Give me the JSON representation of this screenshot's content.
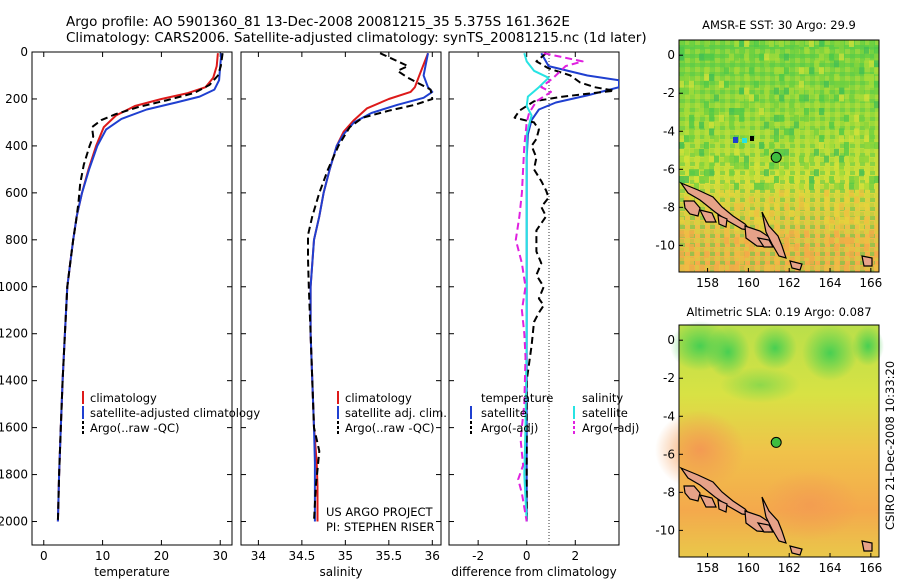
{
  "header": {
    "line1": "Argo profile: AO 5901360_81 13-Dec-2008 20081215_35 5.375S 161.362E",
    "line2": "Climatology: CARS2006. Satellite-adjusted climatology: synTS_20081215.nc (1d later)"
  },
  "side_label": "CSIRO 21-Dec-2008 10:33:20",
  "credit": {
    "line1": "US ARGO PROJECT",
    "line2": "PI: STEPHEN RISER"
  },
  "colors": {
    "red": "#dd1a1a",
    "blue": "#1f3fd0",
    "black": "#000000",
    "cyan": "#27e3e3",
    "magenta": "#e021e0"
  },
  "chart_data": [
    {
      "type": "line",
      "xlabel": "temperature",
      "ylabel": "",
      "xlim": [
        -2,
        32
      ],
      "ylim": [
        2100,
        0
      ],
      "xticks": [
        0,
        10,
        20,
        30
      ],
      "yticks": [
        0,
        200,
        400,
        600,
        800,
        1000,
        1200,
        1400,
        1600,
        1800,
        2000
      ],
      "legend": {
        "position": "lower-left",
        "entries": [
          "climatology",
          "satellite-adjusted climatology",
          "Argo(..raw -QC)"
        ]
      },
      "series": [
        {
          "name": "climatology",
          "color": "red",
          "dash": false,
          "points": [
            [
              29.6,
              5
            ],
            [
              29.4,
              60
            ],
            [
              28.8,
              110
            ],
            [
              27.5,
              150
            ],
            [
              24.5,
              175
            ],
            [
              20,
              200
            ],
            [
              15.5,
              230
            ],
            [
              12.3,
              270
            ],
            [
              10.2,
              320
            ],
            [
              8.9,
              400
            ],
            [
              7.6,
              500
            ],
            [
              6.5,
              600
            ],
            [
              5.6,
              700
            ],
            [
              5,
              800
            ],
            [
              4.5,
              900
            ],
            [
              4,
              1000
            ],
            [
              3.6,
              1200
            ],
            [
              3.2,
              1400
            ],
            [
              2.9,
              1600
            ],
            [
              2.6,
              1800
            ],
            [
              2.4,
              2000
            ]
          ]
        },
        {
          "name": "satellite-adjusted climatology",
          "color": "blue",
          "dash": false,
          "points": [
            [
              30.2,
              5
            ],
            [
              30,
              60
            ],
            [
              29.8,
              120
            ],
            [
              29,
              160
            ],
            [
              26.5,
              190
            ],
            [
              22.5,
              215
            ],
            [
              17.5,
              245
            ],
            [
              13.2,
              285
            ],
            [
              10.6,
              330
            ],
            [
              9.1,
              400
            ],
            [
              7.7,
              500
            ],
            [
              6.5,
              600
            ],
            [
              5.6,
              700
            ],
            [
              5,
              800
            ],
            [
              4.5,
              900
            ],
            [
              4,
              1000
            ],
            [
              3.6,
              1200
            ],
            [
              3.2,
              1400
            ],
            [
              2.9,
              1600
            ],
            [
              2.6,
              1800
            ],
            [
              2.4,
              2000
            ]
          ]
        },
        {
          "name": "Argo(..raw -QC)",
          "color": "black",
          "dash": true,
          "points": [
            [
              30.4,
              5
            ],
            [
              30.1,
              60
            ],
            [
              29.6,
              100
            ],
            [
              28.2,
              140
            ],
            [
              25.5,
              175
            ],
            [
              21,
              205
            ],
            [
              16,
              235
            ],
            [
              12.2,
              265
            ],
            [
              9.8,
              290
            ],
            [
              8.2,
              320
            ],
            [
              8.4,
              360
            ],
            [
              7.8,
              400
            ],
            [
              6.8,
              480
            ],
            [
              6.2,
              560
            ],
            [
              5.9,
              640
            ],
            [
              5.5,
              720
            ],
            [
              5,
              800
            ],
            [
              4.5,
              900
            ],
            [
              4,
              1000
            ],
            [
              3.6,
              1200
            ],
            [
              3.2,
              1400
            ],
            [
              2.9,
              1600
            ],
            [
              2.6,
              1800
            ],
            [
              2.4,
              2000
            ]
          ]
        }
      ]
    },
    {
      "type": "line",
      "xlabel": "salinity",
      "ylabel": "",
      "xlim": [
        33.8,
        36.1
      ],
      "ylim": [
        2100,
        0
      ],
      "xticks": [
        "34",
        "34.5",
        "35",
        "35.5",
        "36"
      ],
      "legend": {
        "position": "lower-right",
        "entries": [
          "climatology",
          "satellite adj. clim.",
          "Argo(..raw -QC)"
        ]
      },
      "series": [
        {
          "name": "climatology",
          "color": "red",
          "dash": false,
          "points": [
            [
              35.95,
              5
            ],
            [
              35.85,
              100
            ],
            [
              35.8,
              150
            ],
            [
              35.75,
              170
            ],
            [
              35.5,
              200
            ],
            [
              35.25,
              240
            ],
            [
              35.1,
              290
            ],
            [
              34.98,
              340
            ],
            [
              34.9,
              400
            ],
            [
              34.82,
              500
            ],
            [
              34.75,
              600
            ],
            [
              34.7,
              700
            ],
            [
              34.64,
              800
            ],
            [
              34.62,
              900
            ],
            [
              34.6,
              1000
            ],
            [
              34.6,
              1200
            ],
            [
              34.62,
              1400
            ],
            [
              34.64,
              1600
            ],
            [
              34.67,
              1750
            ],
            [
              34.68,
              1850
            ],
            [
              34.68,
              2000
            ]
          ]
        },
        {
          "name": "satellite adj. clim.",
          "color": "blue",
          "dash": false,
          "points": [
            [
              35.95,
              5
            ],
            [
              35.9,
              100
            ],
            [
              35.95,
              150
            ],
            [
              36,
              170
            ],
            [
              35.9,
              195
            ],
            [
              35.6,
              225
            ],
            [
              35.3,
              260
            ],
            [
              35.1,
              300
            ],
            [
              34.98,
              350
            ],
            [
              34.9,
              400
            ],
            [
              34.82,
              500
            ],
            [
              34.75,
              600
            ],
            [
              34.7,
              700
            ],
            [
              34.64,
              800
            ],
            [
              34.62,
              900
            ],
            [
              34.6,
              1000
            ],
            [
              34.6,
              1200
            ],
            [
              34.62,
              1400
            ],
            [
              34.64,
              1600
            ],
            [
              34.65,
              1750
            ],
            [
              34.65,
              1850
            ],
            [
              34.65,
              2000
            ]
          ]
        },
        {
          "name": "Argo(..raw -QC)",
          "color": "black",
          "dash": true,
          "points": [
            [
              35.4,
              5
            ],
            [
              35.72,
              60
            ],
            [
              35.6,
              80
            ],
            [
              35.72,
              110
            ],
            [
              35.98,
              160
            ],
            [
              36,
              200
            ],
            [
              35.8,
              225
            ],
            [
              35.5,
              250
            ],
            [
              35.2,
              280
            ],
            [
              35.05,
              320
            ],
            [
              34.92,
              400
            ],
            [
              34.8,
              500
            ],
            [
              34.7,
              600
            ],
            [
              34.62,
              700
            ],
            [
              34.57,
              780
            ],
            [
              34.57,
              880
            ],
            [
              34.58,
              1000
            ],
            [
              34.6,
              1200
            ],
            [
              34.62,
              1400
            ],
            [
              34.64,
              1600
            ],
            [
              34.7,
              1700
            ],
            [
              34.68,
              1780
            ],
            [
              34.66,
              1850
            ],
            [
              34.64,
              2000
            ]
          ]
        }
      ]
    },
    {
      "type": "line",
      "xlabel": "difference from climatology",
      "ylabel": "",
      "xlim": [
        -3.2,
        3.8
      ],
      "ylim": [
        2100,
        0
      ],
      "xticks": [
        -2,
        0,
        2
      ],
      "legend": {
        "position": "lower-center",
        "entries": [
          "temperature",
          "salinity",
          "satellite",
          "satellite",
          "Argo(-adj)",
          "Argo(-adj)"
        ]
      },
      "series": [
        {
          "name": "satellite",
          "color": "blue",
          "dash": false,
          "points": [
            [
              0.6,
              5
            ],
            [
              0.9,
              60
            ],
            [
              2.5,
              100
            ],
            [
              3.8,
              120
            ],
            [
              3.8,
              150
            ],
            [
              2.5,
              185
            ],
            [
              1.2,
              215
            ],
            [
              0.5,
              245
            ],
            [
              0.2,
              290
            ],
            [
              0.05,
              350
            ],
            [
              0,
              450
            ],
            [
              0,
              600
            ],
            [
              0,
              800
            ],
            [
              0,
              1000
            ],
            [
              0,
              1200
            ],
            [
              0,
              1400
            ],
            [
              0,
              1600
            ],
            [
              0,
              1800
            ],
            [
              0,
              2000
            ]
          ]
        },
        {
          "name": "Argo(-adj)",
          "color": "black",
          "dash": true,
          "points": [
            [
              0.8,
              5
            ],
            [
              0.4,
              40
            ],
            [
              0.9,
              70
            ],
            [
              1.8,
              100
            ],
            [
              2.2,
              130
            ],
            [
              2.8,
              150
            ],
            [
              3.6,
              165
            ],
            [
              1.5,
              190
            ],
            [
              0.3,
              210
            ],
            [
              -0.3,
              250
            ],
            [
              -0.5,
              280
            ],
            [
              0.3,
              300
            ],
            [
              0.5,
              330
            ],
            [
              0.4,
              370
            ],
            [
              0.2,
              400
            ],
            [
              0.4,
              450
            ],
            [
              0.3,
              500
            ],
            [
              0.6,
              550
            ],
            [
              0.8,
              590
            ],
            [
              0.9,
              620
            ],
            [
              0.6,
              660
            ],
            [
              0.8,
              700
            ],
            [
              0.4,
              760
            ],
            [
              0.4,
              850
            ],
            [
              0.6,
              900
            ],
            [
              0.4,
              950
            ],
            [
              0.7,
              1000
            ],
            [
              0.5,
              1050
            ],
            [
              0.7,
              1080
            ],
            [
              0.5,
              1110
            ],
            [
              0.3,
              1150
            ],
            [
              0.2,
              1250
            ],
            [
              0,
              1400
            ],
            [
              0,
              2000
            ]
          ]
        },
        {
          "name": "satellite",
          "color": "cyan",
          "dash": false,
          "points": [
            [
              -0.1,
              5
            ],
            [
              0,
              40
            ],
            [
              0.3,
              80
            ],
            [
              0.9,
              110
            ],
            [
              0.5,
              150
            ],
            [
              0.05,
              190
            ],
            [
              0,
              230
            ],
            [
              0.2,
              270
            ],
            [
              0.1,
              310
            ],
            [
              0,
              350
            ],
            [
              0,
              500
            ],
            [
              0,
              800
            ],
            [
              0,
              1200
            ],
            [
              -0.05,
              1600
            ],
            [
              -0.1,
              1800
            ],
            [
              0,
              2000
            ]
          ]
        },
        {
          "name": "Argo(-adj)",
          "color": "magenta",
          "dash": true,
          "points": [
            [
              0.7,
              5
            ],
            [
              2.3,
              40
            ],
            [
              1.6,
              60
            ],
            [
              1.1,
              110
            ],
            [
              0.6,
              150
            ],
            [
              1,
              170
            ],
            [
              0.4,
              210
            ],
            [
              0.1,
              260
            ],
            [
              0,
              300
            ],
            [
              -0.1,
              400
            ],
            [
              -0.15,
              500
            ],
            [
              -0.2,
              600
            ],
            [
              -0.3,
              700
            ],
            [
              -0.45,
              800
            ],
            [
              -0.2,
              900
            ],
            [
              -0.05,
              1000
            ],
            [
              -0.2,
              1100
            ],
            [
              -0.1,
              1200
            ],
            [
              -0.05,
              1300
            ],
            [
              -0.1,
              1500
            ],
            [
              -0.25,
              1650
            ],
            [
              -0.15,
              1760
            ],
            [
              -0.35,
              1820
            ],
            [
              -0.2,
              1880
            ],
            [
              0,
              2000
            ]
          ]
        }
      ]
    },
    {
      "type": "heatmap",
      "title": "AMSR-E SST: 30 Argo: 29.9",
      "xticks": [
        158,
        160,
        162,
        164,
        166
      ],
      "yticks": [
        0,
        -2,
        -4,
        -6,
        -8,
        -10
      ],
      "xlim": [
        156.6,
        166.4
      ],
      "ylim": [
        -11.4,
        0.8
      ],
      "profile_location": [
        161.362,
        -5.375
      ]
    },
    {
      "type": "heatmap",
      "title": "Altimetric SLA: 0.19 Argo: 0.087",
      "xticks": [
        158,
        160,
        162,
        164,
        166
      ],
      "yticks": [
        0,
        -2,
        -4,
        -6,
        -8,
        -10
      ],
      "xlim": [
        156.6,
        166.4
      ],
      "ylim": [
        -11.4,
        0.8
      ],
      "profile_location": [
        161.362,
        -5.375
      ]
    }
  ]
}
